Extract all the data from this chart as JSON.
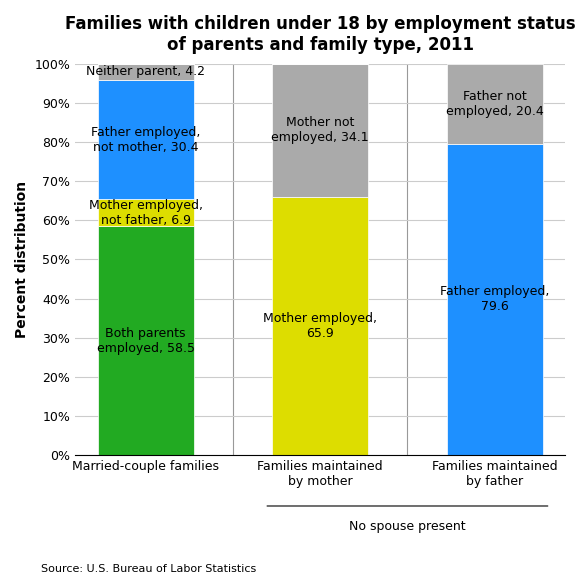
{
  "title": "Families with children under 18 by employment status\nof parents and family type, 2011",
  "categories": [
    "Married-couple families",
    "Families maintained\nby mother",
    "Families maintained\nby father"
  ],
  "xlabel_sub": "No spouse present",
  "ylabel": "Percent distribution",
  "source": "Source: U.S. Bureau of Labor Statistics",
  "segments": [
    {
      "label": "Both parents\nemployed, 58.5",
      "values": [
        58.5,
        0,
        0
      ],
      "color": "#22aa22"
    },
    {
      "label": "Mother employed,\nnot father, 6.9",
      "values": [
        6.9,
        0,
        0
      ],
      "color": "#dddd00"
    },
    {
      "label": "Father employed,\nnot mother, 30.4",
      "values": [
        30.4,
        0,
        0
      ],
      "color": "#1e90ff"
    },
    {
      "label": "Neither parent, 4.2",
      "values": [
        4.2,
        0,
        0
      ],
      "color": "#aaaaaa"
    },
    {
      "label": "Mother employed,\n65.9",
      "values": [
        0,
        65.9,
        0
      ],
      "color": "#dddd00"
    },
    {
      "label": "Mother not\nemployed, 34.1",
      "values": [
        0,
        34.1,
        0
      ],
      "color": "#aaaaaa"
    },
    {
      "label": "Father employed,\n79.6",
      "values": [
        0,
        0,
        79.6
      ],
      "color": "#1e90ff"
    },
    {
      "label": "Father not\nemployed, 20.4",
      "values": [
        0,
        0,
        20.4
      ],
      "color": "#aaaaaa"
    }
  ],
  "bar_width": 0.55,
  "ylim": [
    0,
    100
  ],
  "yticks": [
    0,
    10,
    20,
    30,
    40,
    50,
    60,
    70,
    80,
    90,
    100
  ],
  "ytick_labels": [
    "0%",
    "10%",
    "20%",
    "30%",
    "40%",
    "50%",
    "60%",
    "70%",
    "80%",
    "90%",
    "100%"
  ],
  "background_color": "#ffffff",
  "grid_color": "#cccccc",
  "title_fontsize": 12,
  "label_fontsize": 9,
  "tick_fontsize": 9,
  "source_fontsize": 8
}
